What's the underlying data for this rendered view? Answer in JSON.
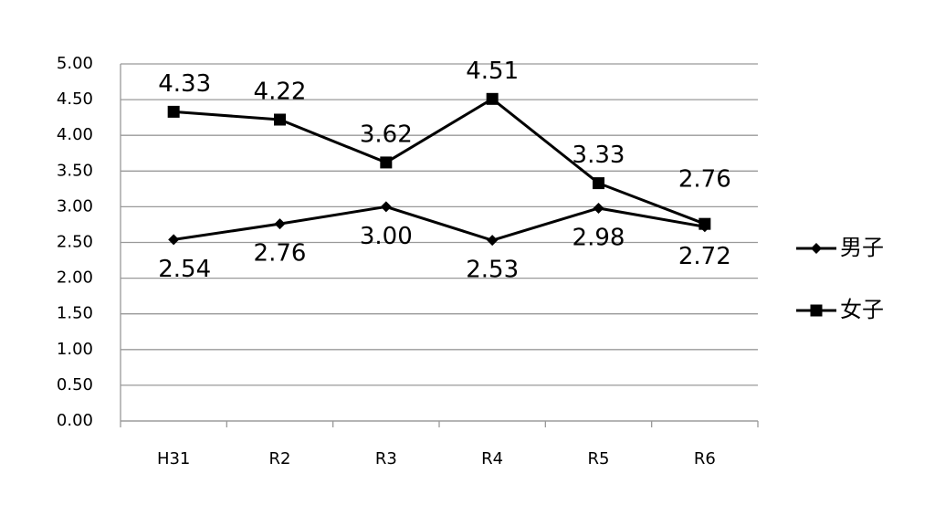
{
  "chart_data": {
    "type": "line",
    "categories": [
      "H31",
      "R2",
      "R3",
      "R4",
      "R5",
      "R6"
    ],
    "series": [
      {
        "name": "男子",
        "color": "#000000",
        "marker": "diamond",
        "values": [
          2.54,
          2.76,
          3.0,
          2.53,
          2.98,
          2.72
        ],
        "value_labels": [
          "2.54",
          "2.76",
          "3.00",
          "2.53",
          "2.98",
          "2.72"
        ]
      },
      {
        "name": "女子",
        "color": "#000000",
        "marker": "square",
        "values": [
          4.33,
          4.22,
          3.62,
          4.51,
          3.33,
          2.76
        ]
      }
    ],
    "ylim": [
      0,
      5
    ],
    "yticks": [
      {
        "value": 0,
        "label": "0.00"
      },
      {
        "value": 0.5,
        "label": "0.50"
      },
      {
        "value": 1,
        "label": "1.00"
      },
      {
        "value": 1.5,
        "label": "1.50"
      },
      {
        "value": 2,
        "label": "2.00"
      },
      {
        "value": 2.5,
        "label": "2.50"
      },
      {
        "value": 3,
        "label": "3.00"
      },
      {
        "value": 3.5,
        "label": "3.50"
      },
      {
        "value": 4,
        "label": "4.00"
      },
      {
        "value": 4.5,
        "label": "4.50"
      },
      {
        "value": 5,
        "label": "5.00"
      }
    ],
    "grid": true,
    "legend": "right"
  }
}
